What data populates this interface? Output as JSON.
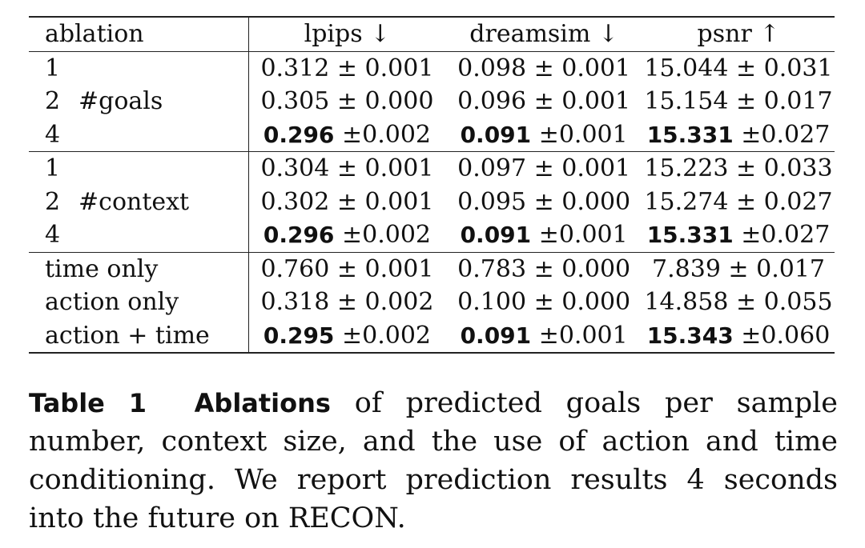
{
  "table": {
    "headers": [
      "ablation",
      "lpips ↓",
      "dreamsim ↓",
      "psnr ↑"
    ],
    "groups": [
      {
        "label": "#goals",
        "rows": [
          {
            "setting": "1",
            "lpips": "0.312 ± 0.001",
            "dreamsim": "0.098 ± 0.001",
            "psnr": "15.044 ± 0.031"
          },
          {
            "setting": "2",
            "lpips": "0.305 ± 0.000",
            "dreamsim": "0.096 ± 0.001",
            "psnr": "15.154 ± 0.017"
          },
          {
            "setting": "4",
            "lpips_best": "0.296",
            "lpips_err": "±0.002",
            "dreamsim_best": "0.091",
            "dreamsim_err": "±0.001",
            "psnr_best": "15.331",
            "psnr_err": "±0.027"
          }
        ]
      },
      {
        "label": "#context",
        "rows": [
          {
            "setting": "1",
            "lpips": "0.304 ± 0.001",
            "dreamsim": "0.097 ± 0.001",
            "psnr": "15.223 ± 0.033"
          },
          {
            "setting": "2",
            "lpips": "0.302 ± 0.001",
            "dreamsim": "0.095 ± 0.000",
            "psnr": "15.274 ± 0.027"
          },
          {
            "setting": "4",
            "lpips_best": "0.296",
            "lpips_err": "±0.002",
            "dreamsim_best": "0.091",
            "dreamsim_err": "±0.001",
            "psnr_best": "15.331",
            "psnr_err": "±0.027"
          }
        ]
      },
      {
        "label": "",
        "rows": [
          {
            "setting": "time only",
            "lpips": "0.760 ± 0.001",
            "dreamsim": "0.783 ± 0.000",
            "psnr": "7.839 ± 0.017"
          },
          {
            "setting": "action only",
            "lpips": "0.318 ± 0.002",
            "dreamsim": "0.100 ± 0.000",
            "psnr": "14.858 ± 0.055"
          },
          {
            "setting": "action + time",
            "lpips_best": "0.295",
            "lpips_err": "±0.002",
            "dreamsim_best": "0.091",
            "dreamsim_err": "±0.001",
            "psnr_best": "15.343",
            "psnr_err": "±0.060"
          }
        ]
      }
    ]
  },
  "caption": {
    "label": "Table 1",
    "title": "Ablations",
    "text": " of predicted goals per sample number, context size, and the use of action and time conditioning. We report prediction results 4 seconds into the future on RECON."
  }
}
